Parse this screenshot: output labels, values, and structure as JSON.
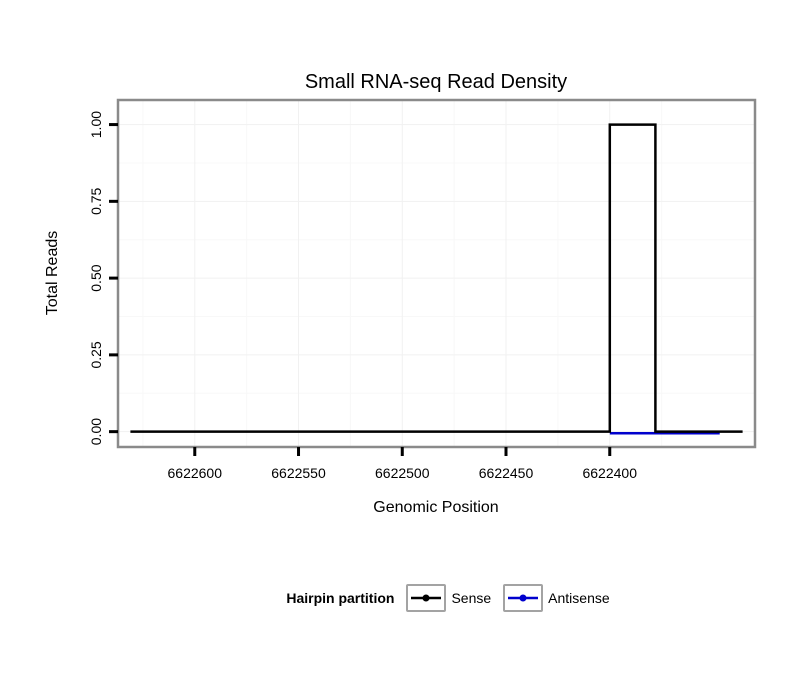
{
  "chart_data": {
    "type": "line",
    "title": "Small RNA-seq Read Density",
    "xlabel": "Genomic Position",
    "ylabel": "Total Reads",
    "x_reversed": true,
    "xlim": [
      6622637,
      6622330
    ],
    "ylim": [
      -0.05,
      1.08
    ],
    "x_ticks": [
      {
        "v": 6622600,
        "label": "6622600"
      },
      {
        "v": 6622550,
        "label": "6622550"
      },
      {
        "v": 6622500,
        "label": "6622500"
      },
      {
        "v": 6622450,
        "label": "6622450"
      },
      {
        "v": 6622400,
        "label": "6622400"
      }
    ],
    "y_ticks": [
      {
        "v": 0.0,
        "label": "0.00"
      },
      {
        "v": 0.25,
        "label": "0.25"
      },
      {
        "v": 0.5,
        "label": "0.50"
      },
      {
        "v": 0.75,
        "label": "0.75"
      },
      {
        "v": 1.0,
        "label": "1.00"
      }
    ],
    "grid": true,
    "grid_major_color": "#f1f1f1",
    "grid_minor_color": "#f8f8f8",
    "panel_border_color": "#8a8a8a",
    "legend_position": "bottom",
    "legend_title": "Hairpin partition",
    "series": [
      {
        "name": "Sense",
        "color": "#000000",
        "points": [
          [
            6622631,
            0
          ],
          [
            6622400,
            0
          ],
          [
            6622400,
            1
          ],
          [
            6622378,
            1
          ],
          [
            6622378,
            0
          ],
          [
            6622336,
            0
          ]
        ]
      },
      {
        "name": "Antisense",
        "color": "#0000cd",
        "points": [
          [
            6622400,
            -0.005
          ],
          [
            6622347,
            -0.005
          ]
        ]
      }
    ]
  }
}
